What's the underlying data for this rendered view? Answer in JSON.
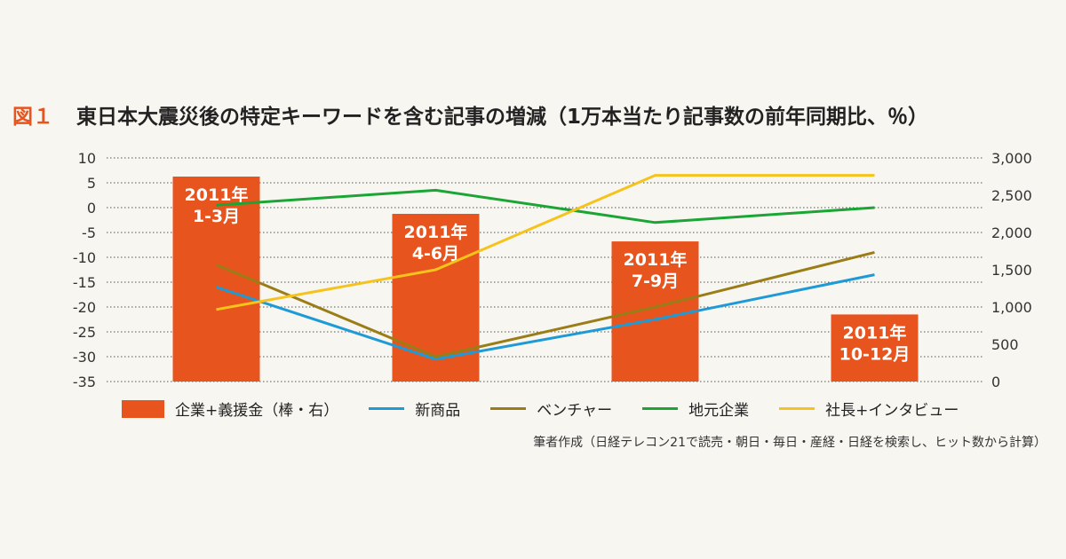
{
  "title": {
    "fig_label": "図１",
    "text": "東日本大震災後の特定キーワードを含む記事の増減（1万本当たり記事数の前年同期比、％）"
  },
  "chart_data": {
    "type": "bar",
    "categories": [
      "2011年\n1-3月",
      "2011年\n4-6月",
      "2011年\n7-9月",
      "2011年\n10-12月"
    ],
    "y_left": {
      "min": -35,
      "max": 10,
      "ticks": [
        "10",
        "5",
        "0",
        "-5",
        "-10",
        "-15",
        "-20",
        "-25",
        "-30",
        "-35"
      ]
    },
    "y_right": {
      "min": 0,
      "max": 3000,
      "ticks": [
        "3,000",
        "2,500",
        "2,000",
        "1,500",
        "1,000",
        "500",
        "0"
      ]
    },
    "bars": {
      "name": "企業+義援金（棒・右）",
      "axis": "right",
      "color": "#e8541e",
      "values": [
        2750,
        2250,
        1880,
        900
      ]
    },
    "lines": [
      {
        "name": "新商品",
        "axis": "left",
        "color": "#1e9ad6",
        "values": [
          -16,
          -30.5,
          -22.5,
          -13.5
        ]
      },
      {
        "name": "ベンチャー",
        "axis": "left",
        "color": "#9a7d17",
        "values": [
          -11.5,
          -30,
          -20,
          -9
        ]
      },
      {
        "name": "地元企業",
        "axis": "left",
        "color": "#1aa535",
        "values": [
          0.5,
          3.5,
          -3,
          0
        ]
      },
      {
        "name": "社長+インタビュー",
        "axis": "left",
        "color": "#f5c31c",
        "values": [
          -20.5,
          -12.5,
          6.5,
          6.5
        ]
      }
    ],
    "grid": "horizontal-dotted",
    "legend": "bottom"
  },
  "source": "筆者作成（日経テレコン21で読売・朝日・毎日・産経・日経を検索し、ヒット数から計算）"
}
